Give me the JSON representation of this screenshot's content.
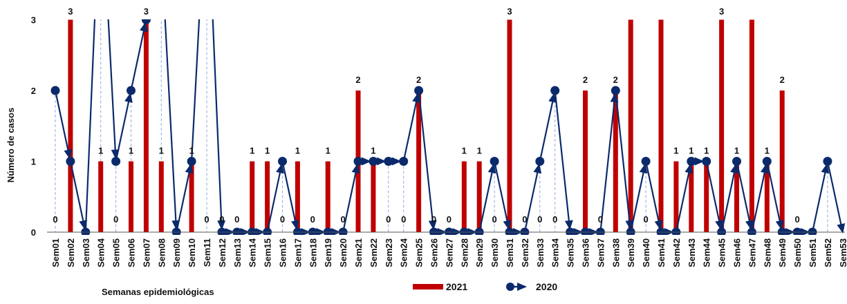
{
  "chart_data": {
    "type": "bar",
    "title": "",
    "xlabel": "Semanas epidemiológicas",
    "ylabel": "Número de casos",
    "ylim": [
      0,
      3
    ],
    "yticks": [
      "0",
      "1",
      "2",
      "3"
    ],
    "grid": false,
    "legend_position": "bottom",
    "categories": [
      "Sem01",
      "Sem02",
      "Sem03",
      "Sem04",
      "Sem05",
      "Sem06",
      "Sem07",
      "Sem08",
      "Sem09",
      "Sem10",
      "Sem11",
      "Sem12",
      "Sem13",
      "Sem14",
      "Sem15",
      "Sem16",
      "Sem17",
      "Sem18",
      "Sem19",
      "Sem20",
      "Sem21",
      "Sem22",
      "Sem23",
      "Sem24",
      "Sem25",
      "Sem26",
      "Sem27",
      "Sem28",
      "Sem29",
      "Sem30",
      "Sem31",
      "Sem32",
      "Sem33",
      "Sem34",
      "Sem35",
      "Sem36",
      "Sem37",
      "Sem38",
      "Sem39",
      "Sem40",
      "Sem41",
      "Sem42",
      "Sem43",
      "Sem44",
      "Sem45",
      "Sem46",
      "Sem47",
      "Sem48",
      "Sem49",
      "Sem50",
      "Sem51",
      "Sem52",
      "Sem53"
    ],
    "series": [
      {
        "name": "2021",
        "type": "bar",
        "color": "#c00000",
        "values": [
          0,
          3,
          0,
          1,
          0,
          1,
          3,
          1,
          0,
          1,
          0,
          0,
          0,
          1,
          1,
          0,
          1,
          0,
          1,
          0,
          2,
          1,
          0,
          0,
          2,
          0,
          0,
          1,
          1,
          0,
          3,
          0,
          0,
          0,
          0,
          2,
          0,
          2,
          3,
          0,
          3,
          1,
          1,
          1,
          3,
          1,
          3,
          1,
          2,
          0,
          null,
          null,
          null
        ],
        "data_labels": [
          "0",
          "3",
          "",
          "1",
          "0",
          "1",
          "3",
          "1",
          "",
          "1",
          "0",
          "0",
          "0",
          "1",
          "1",
          "0",
          "1",
          "0",
          "1",
          "0",
          "2",
          "1",
          "0",
          "0",
          "2",
          "0",
          "0",
          "1",
          "1",
          "0",
          "3",
          "0",
          "0",
          "0",
          "",
          "2",
          "0",
          "2",
          "",
          "0",
          "",
          "1",
          "1",
          "1",
          "3",
          "1",
          "",
          "1",
          "2",
          "0",
          "",
          "",
          ""
        ]
      },
      {
        "name": "2020",
        "type": "line",
        "color": "#0b2a6b",
        "values": [
          2,
          1,
          0,
          5,
          1,
          2,
          3,
          4,
          0,
          1,
          5,
          0,
          0,
          0,
          0,
          1,
          0,
          0,
          0,
          0,
          1,
          1,
          1,
          1,
          2,
          0,
          0,
          0,
          0,
          1,
          0,
          0,
          1,
          2,
          0,
          0,
          0,
          2,
          0,
          1,
          0,
          0,
          1,
          1,
          0,
          1,
          0,
          1,
          0,
          0,
          0,
          1,
          0
        ]
      }
    ]
  }
}
